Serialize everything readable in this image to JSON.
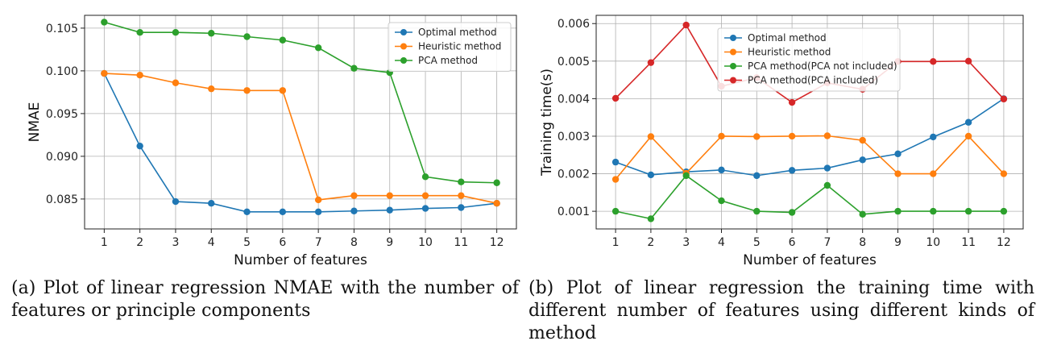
{
  "chart_data": [
    {
      "type": "line",
      "xlabel": "Number of features",
      "ylabel": "NMAE",
      "x": [
        1,
        2,
        3,
        4,
        5,
        6,
        7,
        8,
        9,
        10,
        11,
        12
      ],
      "xlim": [
        0.45,
        12.55
      ],
      "ylim": [
        0.0815,
        0.1065
      ],
      "yticks": [
        0.085,
        0.09,
        0.095,
        0.1,
        0.105
      ],
      "ytick_labels": [
        "0.085",
        "0.090",
        "0.095",
        "0.100",
        "0.105"
      ],
      "grid": true,
      "legend_position": "top-right",
      "series": [
        {
          "name": "Optimal method",
          "color": "#1f77b4",
          "values": [
            0.0997,
            0.0912,
            0.0847,
            0.0845,
            0.0835,
            0.0835,
            0.0835,
            0.0836,
            0.0837,
            0.0839,
            0.084,
            0.0845
          ]
        },
        {
          "name": "Heuristic method",
          "color": "#ff7f0e",
          "values": [
            0.0997,
            0.0995,
            0.0986,
            0.0979,
            0.0977,
            0.0977,
            0.0849,
            0.0854,
            0.0854,
            0.0854,
            0.0854,
            0.0845
          ]
        },
        {
          "name": "PCA method",
          "color": "#2ca02c",
          "values": [
            0.1057,
            0.1045,
            0.1045,
            0.1044,
            0.104,
            0.1036,
            0.1027,
            0.1003,
            0.0998,
            0.0876,
            0.087,
            0.0869
          ]
        }
      ],
      "caption": "(a) Plot of linear regression NMAE with the number of features or principle components"
    },
    {
      "type": "line",
      "xlabel": "Number of features",
      "ylabel": "Training time(s)",
      "x": [
        1,
        2,
        3,
        4,
        5,
        6,
        7,
        8,
        9,
        10,
        11,
        12
      ],
      "xlim": [
        0.45,
        12.55
      ],
      "ylim": [
        0.00053,
        0.00622
      ],
      "yticks": [
        0.001,
        0.002,
        0.003,
        0.004,
        0.005,
        0.006
      ],
      "ytick_labels": [
        "0.001",
        "0.002",
        "0.003",
        "0.004",
        "0.005",
        "0.006"
      ],
      "grid": true,
      "legend_position": "top-center",
      "series": [
        {
          "name": "Optimal method",
          "color": "#1f77b4",
          "values": [
            0.00231,
            0.00197,
            0.00205,
            0.0021,
            0.00195,
            0.00209,
            0.00215,
            0.00237,
            0.00253,
            0.00298,
            0.00337,
            0.004
          ]
        },
        {
          "name": "Heuristic method",
          "color": "#ff7f0e",
          "values": [
            0.00185,
            0.00299,
            0.00201,
            0.003,
            0.00299,
            0.003,
            0.00301,
            0.00289,
            0.002,
            0.002,
            0.003,
            0.002
          ]
        },
        {
          "name": "PCA method(PCA not included)",
          "color": "#2ca02c",
          "values": [
            0.001,
            0.0008,
            0.00195,
            0.00128,
            0.001,
            0.00097,
            0.00169,
            0.00092,
            0.001,
            0.001,
            0.001,
            0.001
          ]
        },
        {
          "name": "PCA method(PCA included)",
          "color": "#d62728",
          "values": [
            0.00401,
            0.00496,
            0.00596,
            0.00433,
            0.00456,
            0.0039,
            0.00442,
            0.00425,
            0.00499,
            0.00499,
            0.005,
            0.00399
          ]
        }
      ],
      "caption": "(b) Plot of linear regression the training time with different number of features using different kinds of method"
    }
  ]
}
